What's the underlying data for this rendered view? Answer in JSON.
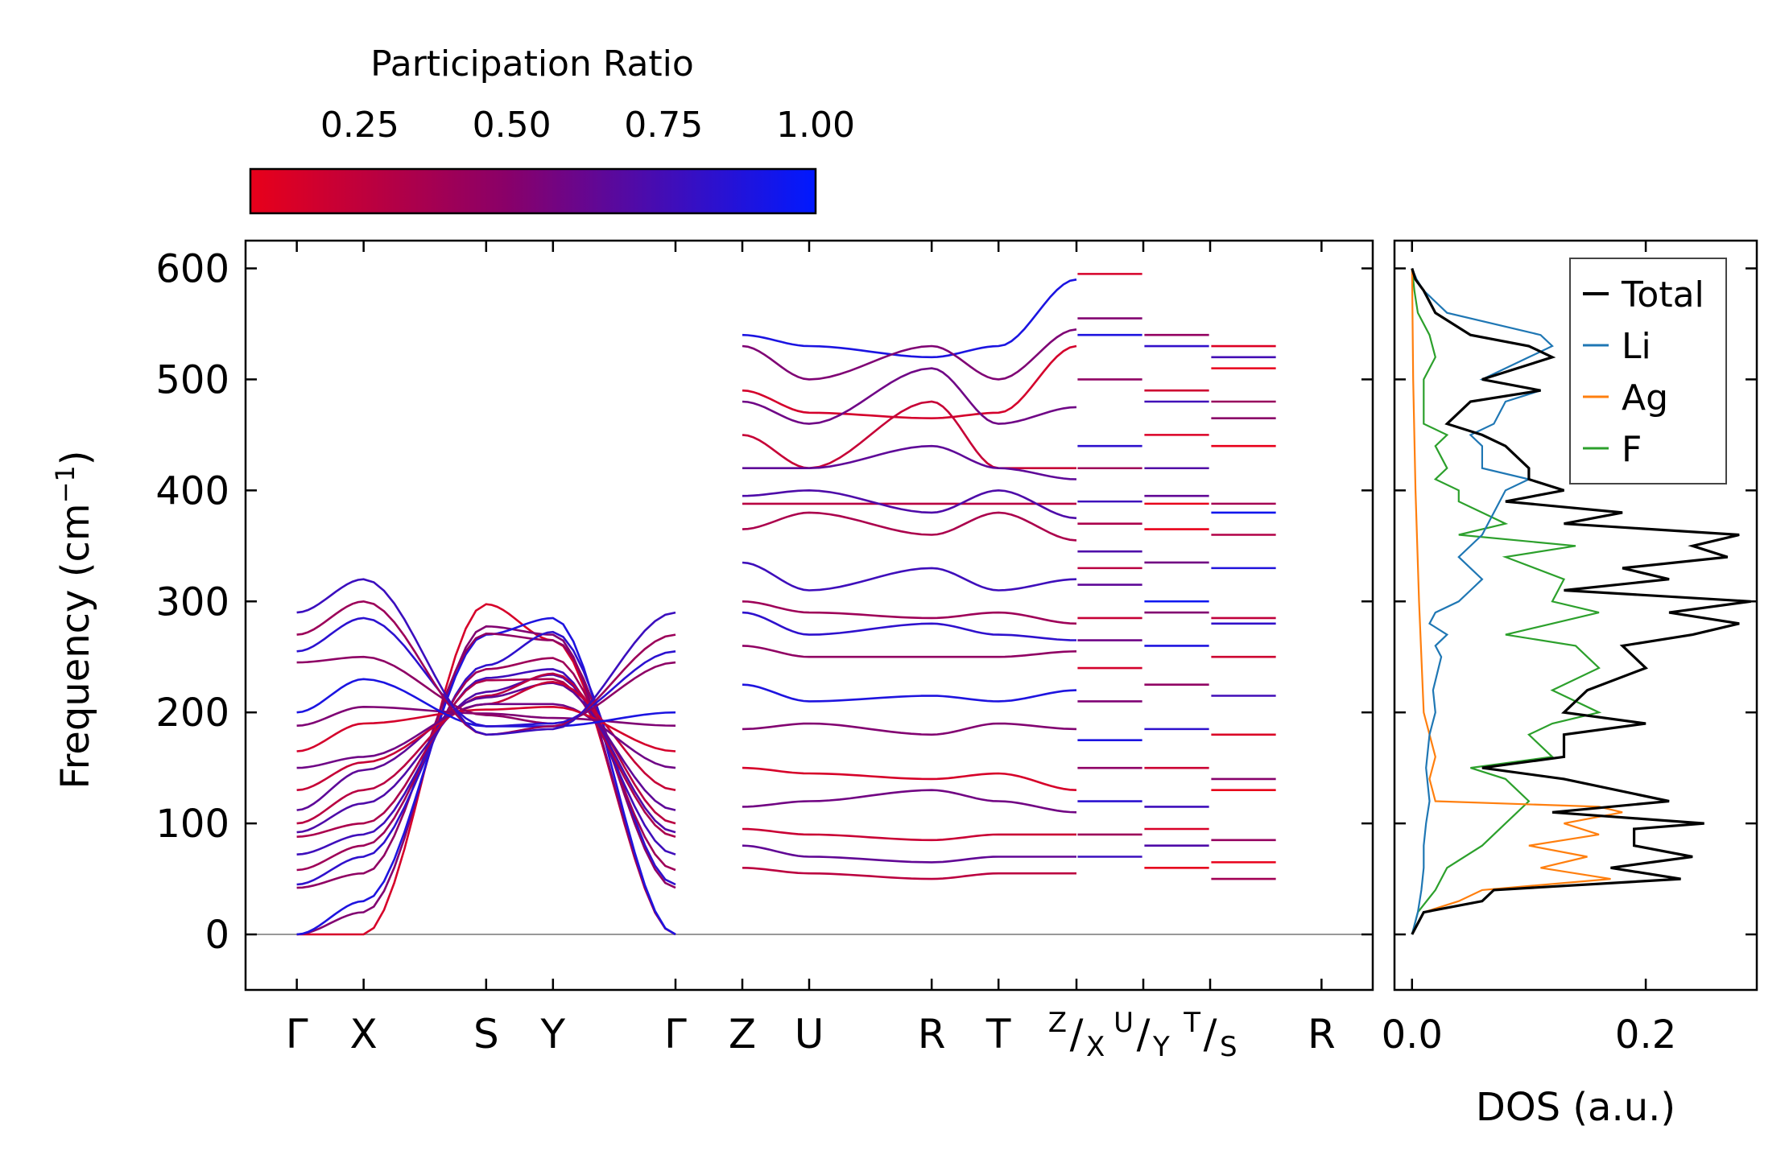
{
  "colorbar": {
    "title": "Participation Ratio",
    "ticks": [
      "0.25",
      "0.50",
      "0.75",
      "1.00"
    ],
    "tick_values": [
      0.25,
      0.5,
      0.75,
      1.0
    ],
    "range": [
      0.07,
      1.0
    ],
    "color_low": "#e8001a",
    "color_mid": "#8a0068",
    "color_high": "#0019ff"
  },
  "chart_data": [
    {
      "type": "line",
      "panel": "phonon dispersion",
      "ylabel": "Frequency (cm",
      "ylabel_sup": "−1",
      "ylabel_end": ")",
      "ylim": [
        -50,
        625
      ],
      "yticks": [
        "0",
        "100",
        "200",
        "300",
        "400",
        "500",
        "600"
      ],
      "ytick_values": [
        0,
        100,
        200,
        300,
        400,
        500,
        600
      ],
      "xticks": [
        "Γ",
        "X",
        "S",
        "Y",
        "Γ",
        "Z",
        "U",
        "R",
        "T",
        "R"
      ],
      "xtick_positions": [
        0,
        0.6,
        1.7,
        2.3,
        3.4,
        4.0,
        4.6,
        5.7,
        6.3,
        9.2
      ],
      "special_labels": [
        {
          "top": "Z",
          "bottom": "X",
          "pos": 7.0
        },
        {
          "top": "U",
          "bottom": "Y",
          "pos": 7.6
        },
        {
          "top": "T",
          "bottom": "S",
          "pos": 8.2
        }
      ],
      "xlim": [
        -0.46,
        9.66
      ],
      "zero_line": 0,
      "path_segments": [
        {
          "from": "Γ",
          "to": "Y",
          "range": [
            0,
            2.3
          ]
        },
        {
          "from": "Y",
          "to": "Γ",
          "range": [
            2.3,
            3.4
          ]
        },
        {
          "from": "Z",
          "to": "Z",
          "range": [
            4.0,
            7.0
          ]
        },
        {
          "from": "X",
          "to": "U",
          "range": [
            7.0,
            7.6
          ]
        },
        {
          "from": "Y",
          "to": "T",
          "range": [
            7.6,
            8.2
          ]
        },
        {
          "from": "S",
          "to": "R",
          "range": [
            8.2,
            8.8
          ]
        }
      ],
      "band_frequencies_cm1": [
        [
          0,
          0,
          595,
          530,
          540,
          530,
          520,
          590
        ],
        [
          0,
          20,
          555,
          520,
          530,
          500,
          530,
          545
        ],
        [
          0,
          30,
          540,
          540,
          490,
          470,
          465,
          530
        ],
        [
          42,
          55,
          500,
          475,
          480,
          460,
          510,
          475
        ],
        [
          45,
          70,
          440,
          475,
          450,
          420,
          480,
          420
        ],
        [
          58,
          80,
          420,
          418,
          420,
          420,
          440,
          410
        ],
        [
          72,
          90,
          390,
          388,
          388,
          388,
          388,
          388
        ],
        [
          88,
          100,
          370,
          360,
          395,
          400,
          380,
          375
        ],
        [
          92,
          118,
          345,
          350,
          365,
          380,
          360,
          355
        ],
        [
          100,
          130,
          330,
          340,
          335,
          310,
          330,
          320
        ],
        [
          112,
          148,
          315,
          305,
          300,
          290,
          285,
          280
        ],
        [
          130,
          155,
          285,
          300,
          290,
          270,
          280,
          265
        ],
        [
          150,
          160,
          265,
          255,
          260,
          250,
          250,
          255
        ],
        [
          165,
          190,
          240,
          220,
          225,
          210,
          215,
          220
        ],
        [
          188,
          205,
          210,
          185,
          185,
          190,
          180,
          185
        ],
        [
          200,
          230,
          175,
          145,
          150,
          145,
          140,
          130
        ],
        [
          245,
          250,
          150,
          130,
          115,
          120,
          130,
          110
        ],
        [
          255,
          285,
          120,
          95,
          95,
          90,
          85,
          90
        ],
        [
          270,
          300,
          90,
          75,
          80,
          70,
          65,
          70
        ],
        [
          290,
          320,
          70,
          50,
          60,
          55,
          50,
          55
        ]
      ],
      "color_scale": "participation ratio"
    },
    {
      "type": "line",
      "panel": "density of states",
      "xlabel": "DOS (a.u.)",
      "xticks": [
        "0.0",
        "0.2"
      ],
      "xtick_values": [
        0.0,
        0.2
      ],
      "xlim": [
        -0.015,
        0.295
      ],
      "ylim": [
        -50,
        625
      ],
      "legend_position": "top-right",
      "series": [
        {
          "name": "Total",
          "color": "#000000",
          "freq": [
            0,
            20,
            30,
            40,
            50,
            60,
            70,
            80,
            95,
            100,
            110,
            120,
            140,
            150,
            160,
            180,
            190,
            200,
            220,
            240,
            260,
            270,
            280,
            290,
            300,
            310,
            320,
            330,
            340,
            350,
            360,
            370,
            380,
            390,
            400,
            410,
            420,
            440,
            450,
            460,
            480,
            490,
            500,
            520,
            530,
            540,
            560,
            580,
            590,
            600
          ],
          "values": [
            0,
            0.01,
            0.06,
            0.07,
            0.23,
            0.17,
            0.24,
            0.19,
            0.19,
            0.25,
            0.12,
            0.22,
            0.13,
            0.06,
            0.13,
            0.13,
            0.2,
            0.13,
            0.15,
            0.2,
            0.18,
            0.24,
            0.28,
            0.22,
            0.29,
            0.13,
            0.22,
            0.18,
            0.27,
            0.24,
            0.28,
            0.13,
            0.18,
            0.08,
            0.13,
            0.1,
            0.1,
            0.08,
            0.06,
            0.03,
            0.05,
            0.11,
            0.06,
            0.12,
            0.1,
            0.05,
            0.02,
            0.01,
            0.003,
            0
          ]
        },
        {
          "name": "Li",
          "color": "#1f77b4",
          "freq": [
            0,
            20,
            40,
            60,
            80,
            100,
            120,
            150,
            180,
            200,
            220,
            250,
            260,
            270,
            280,
            290,
            300,
            310,
            320,
            340,
            360,
            380,
            400,
            410,
            420,
            440,
            450,
            460,
            480,
            490,
            500,
            520,
            530,
            540,
            560,
            580,
            590,
            600
          ],
          "values": [
            0,
            0.005,
            0.008,
            0.01,
            0.01,
            0.012,
            0.015,
            0.012,
            0.015,
            0.02,
            0.018,
            0.025,
            0.02,
            0.03,
            0.015,
            0.02,
            0.04,
            0.05,
            0.06,
            0.04,
            0.06,
            0.07,
            0.08,
            0.1,
            0.06,
            0.06,
            0.05,
            0.07,
            0.08,
            0.11,
            0.06,
            0.1,
            0.12,
            0.11,
            0.03,
            0.01,
            0.004,
            0
          ]
        },
        {
          "name": "Ag",
          "color": "#ff7f0e",
          "freq": [
            0,
            20,
            30,
            40,
            50,
            60,
            70,
            80,
            90,
            100,
            110,
            115,
            120,
            140,
            160,
            200,
            300,
            400,
            500,
            600
          ],
          "values": [
            0,
            0.01,
            0.04,
            0.06,
            0.17,
            0.11,
            0.15,
            0.1,
            0.16,
            0.13,
            0.18,
            0.16,
            0.02,
            0.015,
            0.02,
            0.01,
            0.006,
            0.003,
            0.001,
            0
          ]
        },
        {
          "name": "F",
          "color": "#2ca02c",
          "freq": [
            0,
            20,
            40,
            60,
            80,
            100,
            120,
            140,
            150,
            160,
            180,
            190,
            200,
            220,
            240,
            260,
            270,
            280,
            290,
            300,
            320,
            340,
            350,
            360,
            370,
            380,
            390,
            400,
            410,
            420,
            440,
            450,
            460,
            480,
            500,
            520,
            540,
            560,
            580,
            600
          ],
          "values": [
            0,
            0.005,
            0.02,
            0.03,
            0.06,
            0.08,
            0.1,
            0.08,
            0.05,
            0.12,
            0.1,
            0.12,
            0.16,
            0.12,
            0.16,
            0.14,
            0.08,
            0.12,
            0.16,
            0.12,
            0.13,
            0.08,
            0.14,
            0.04,
            0.08,
            0.06,
            0.04,
            0.04,
            0.02,
            0.03,
            0.02,
            0.03,
            0.01,
            0.01,
            0.01,
            0.02,
            0.015,
            0.005,
            0.002,
            0
          ]
        }
      ]
    }
  ]
}
